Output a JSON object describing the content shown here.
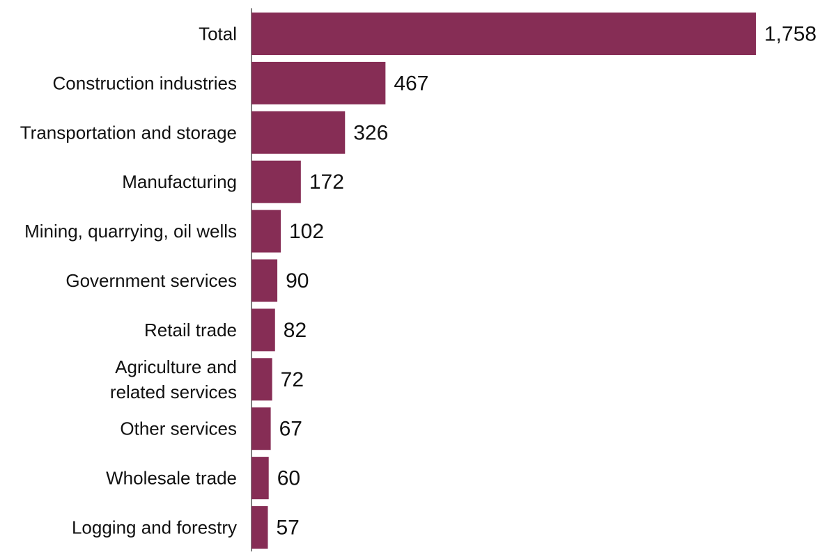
{
  "chart_data": {
    "type": "bar",
    "orientation": "horizontal",
    "categories": [
      "Total",
      "Construction industries",
      "Transportation and storage",
      "Manufacturing",
      "Mining, quarrying, oil wells",
      "Government services",
      "Retail trade",
      "Agriculture and related services",
      "Other services",
      "Wholesale trade",
      "Logging and forestry"
    ],
    "category_display_lines": [
      [
        "Total"
      ],
      [
        "Construction industries"
      ],
      [
        "Transportation and storage"
      ],
      [
        "Manufacturing"
      ],
      [
        "Mining, quarrying, oil wells"
      ],
      [
        "Government services"
      ],
      [
        "Retail trade"
      ],
      [
        "Agriculture and",
        "related services"
      ],
      [
        "Other services"
      ],
      [
        "Wholesale trade"
      ],
      [
        "Logging and forestry"
      ]
    ],
    "values": [
      1758,
      467,
      326,
      172,
      102,
      90,
      82,
      72,
      67,
      60,
      57
    ],
    "value_labels": [
      "1,758",
      "467",
      "326",
      "172",
      "102",
      "90",
      "82",
      "72",
      "67",
      "60",
      "57"
    ],
    "title": "",
    "xlabel": "",
    "ylabel": "",
    "xlim": [
      0,
      1758
    ],
    "grid": false,
    "legend": "none",
    "bar_color": "#862d55",
    "axis_color": "#555555"
  }
}
